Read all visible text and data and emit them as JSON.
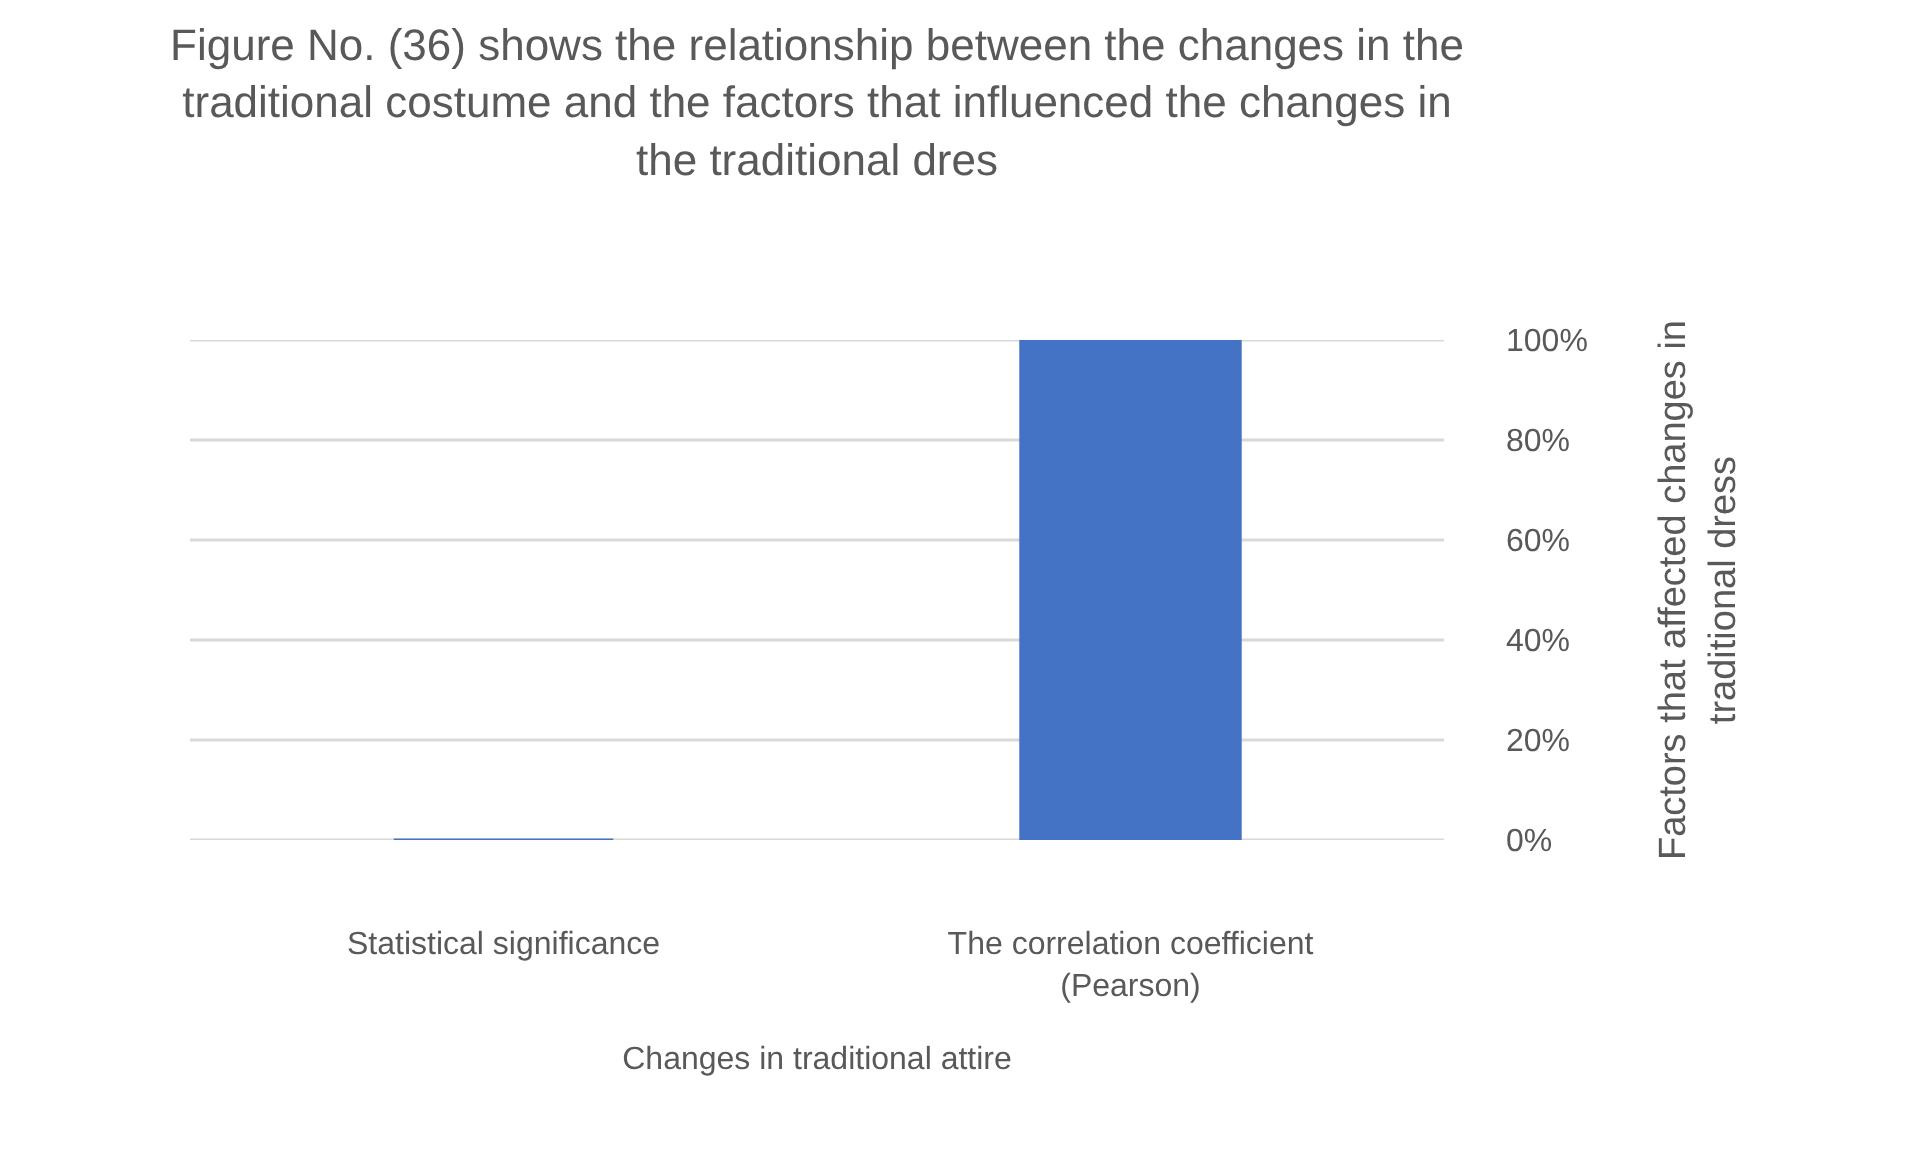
{
  "chart_data": {
    "type": "bar",
    "title": "Figure No. (36) shows the relationship between the changes in the traditional costume and the factors that influenced the changes in the traditional dres",
    "xlabel": "Changes in traditional attire",
    "ylabel": "Factors that affected changes in traditional dress",
    "categories": [
      "Statistical significance",
      "The correlation coefficient (Pearson)"
    ],
    "values": [
      0,
      100
    ],
    "color": "#4472c4",
    "ylim": [
      0,
      100
    ],
    "yticks": [
      {
        "value": 0,
        "label": "0%"
      },
      {
        "value": 20,
        "label": "20%"
      },
      {
        "value": 40,
        "label": "40%"
      },
      {
        "value": 60,
        "label": "60%"
      },
      {
        "value": 80,
        "label": "80%"
      },
      {
        "value": 100,
        "label": "100%"
      }
    ],
    "grid": "y"
  }
}
